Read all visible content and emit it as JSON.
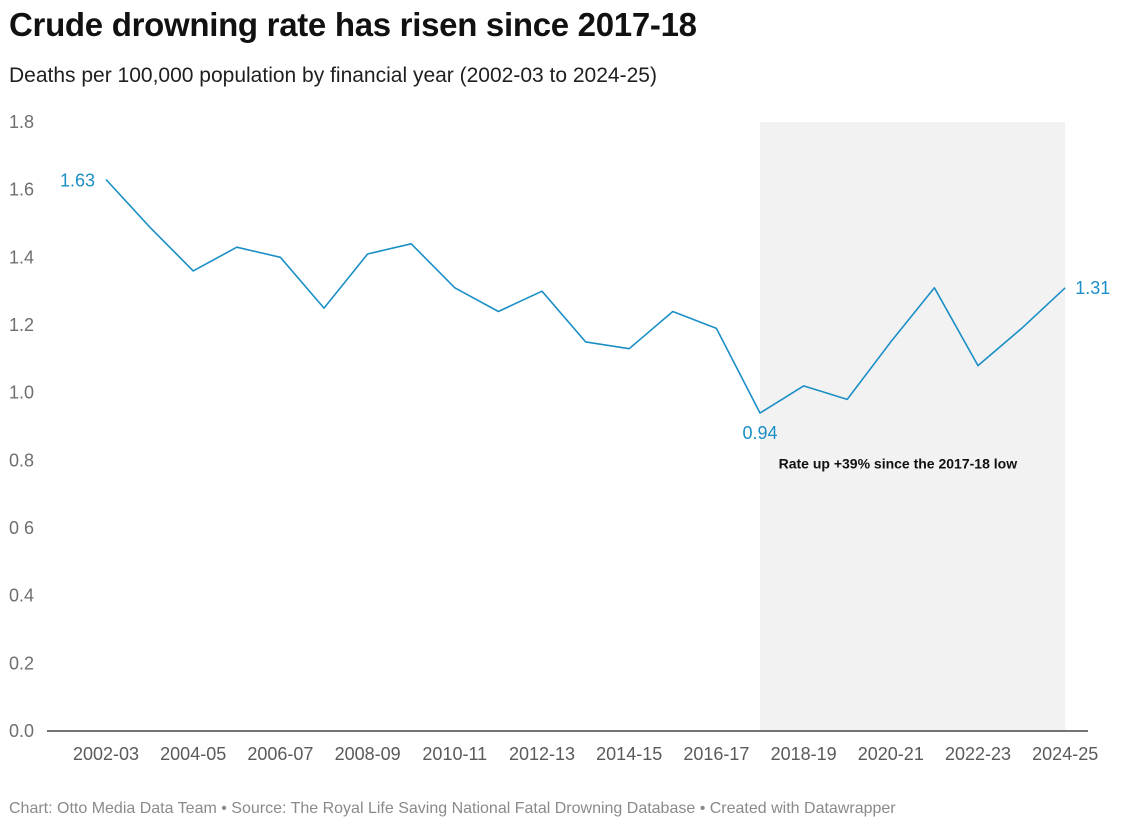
{
  "title": "Crude drowning rate has risen since 2017-18",
  "subtitle": "Deaths per 100,000 population by financial year (2002-03 to 2024-25)",
  "footer": "Chart: Otto Media Data Team • Source: The Royal Life Saving National Fatal Drowning Database • Created with Datawrapper",
  "chart_data": {
    "type": "line",
    "title": "Crude drowning rate has risen since 2017-18",
    "subtitle": "Deaths per 100,000 population by financial year (2002-03 to 2024-25)",
    "xlabel": "",
    "ylabel": "",
    "ylim": [
      0,
      1.8
    ],
    "yticks": [
      "0.0",
      "0.2",
      "0.4",
      "0 6",
      "0.8",
      "1.0",
      "1.2",
      "1.4",
      "1.6",
      "1.8"
    ],
    "categories": [
      "2002-03",
      "2003-04",
      "2004-05",
      "2005-06",
      "2006-07",
      "2007-08",
      "2008-09",
      "2009-10",
      "2010-11",
      "2011-12",
      "2012-13",
      "2013-14",
      "2014-15",
      "2015-16",
      "2016-17",
      "2017-18",
      "2018-19",
      "2019-20",
      "2020-21",
      "2021-22",
      "2022-23",
      "2023-24",
      "2024-25"
    ],
    "xtick_labels": [
      "2002-03",
      "2004-05",
      "2006-07",
      "2008-09",
      "2010-11",
      "2012-13",
      "2014-15",
      "2016-17",
      "2018-19",
      "2020-21",
      "2022-23",
      "2024-25"
    ],
    "series": [
      {
        "values": [
          1.63,
          1.49,
          1.36,
          1.43,
          1.4,
          1.25,
          1.41,
          1.44,
          1.31,
          1.24,
          1.3,
          1.15,
          1.13,
          1.24,
          1.19,
          0.94,
          1.02,
          0.98,
          1.15,
          1.31,
          1.08,
          1.19,
          1.31
        ],
        "color": "#1b8fc6"
      }
    ],
    "data_labels": [
      {
        "category": "2002-03",
        "text": "1.63",
        "side": "left"
      },
      {
        "category": "2017-18",
        "text": "0.94",
        "side": "below"
      },
      {
        "category": "2024-25",
        "text": "1.31",
        "side": "right"
      }
    ],
    "highlight_range": {
      "from": "2017-18",
      "to": "2024-25",
      "color": "#f2f2f2"
    },
    "annotation": {
      "text": "Rate up +39% since the 2017-18 low",
      "category": "2018-19",
      "y": 0.79
    },
    "grid": false,
    "legend": "none"
  }
}
